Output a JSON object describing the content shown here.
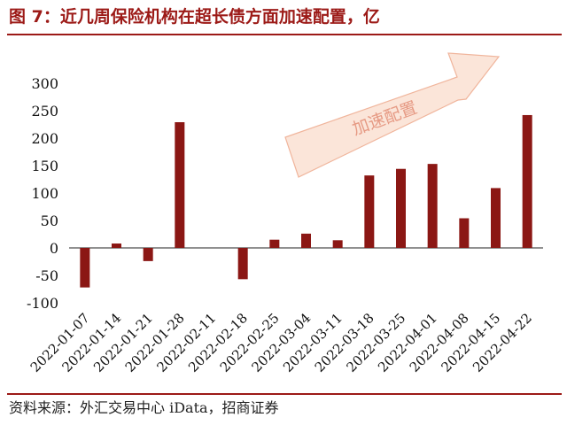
{
  "title": "图 7：近几周保险机构在超长债方面加速配置，亿",
  "source": "资料来源：外汇交易中心 iData，招商证券",
  "colors": {
    "accent": "#9c1a17",
    "bar": "#8b1714",
    "arrow_fill": "#fbe5d9",
    "arrow_stroke": "#f0b59c",
    "arrow_text": "#e69a84"
  },
  "chart_data": {
    "type": "bar",
    "title": "",
    "xlabel": "",
    "ylabel": "",
    "ylim": [
      -100,
      300
    ],
    "yticks": [
      300,
      250,
      200,
      150,
      100,
      50,
      0,
      -50,
      -100
    ],
    "ytick_labels": [
      "300",
      "250",
      "200",
      "150",
      "100",
      "50",
      "0",
      "-50",
      "-100"
    ],
    "grid": false,
    "legend": "none",
    "categories": [
      "2022-01-07",
      "2022-01-14",
      "2022-01-21",
      "2022-01-28",
      "2022-02-11",
      "2022-02-18",
      "2022-02-25",
      "2022-03-04",
      "2022-03-11",
      "2022-03-18",
      "2022-03-25",
      "2022-04-01",
      "2022-04-08",
      "2022-04-15",
      "2022-04-22"
    ],
    "values": [
      -72,
      8,
      -24,
      229,
      0,
      -57,
      15,
      26,
      14,
      132,
      144,
      153,
      54,
      109,
      242
    ],
    "annotation": "加速配置"
  }
}
